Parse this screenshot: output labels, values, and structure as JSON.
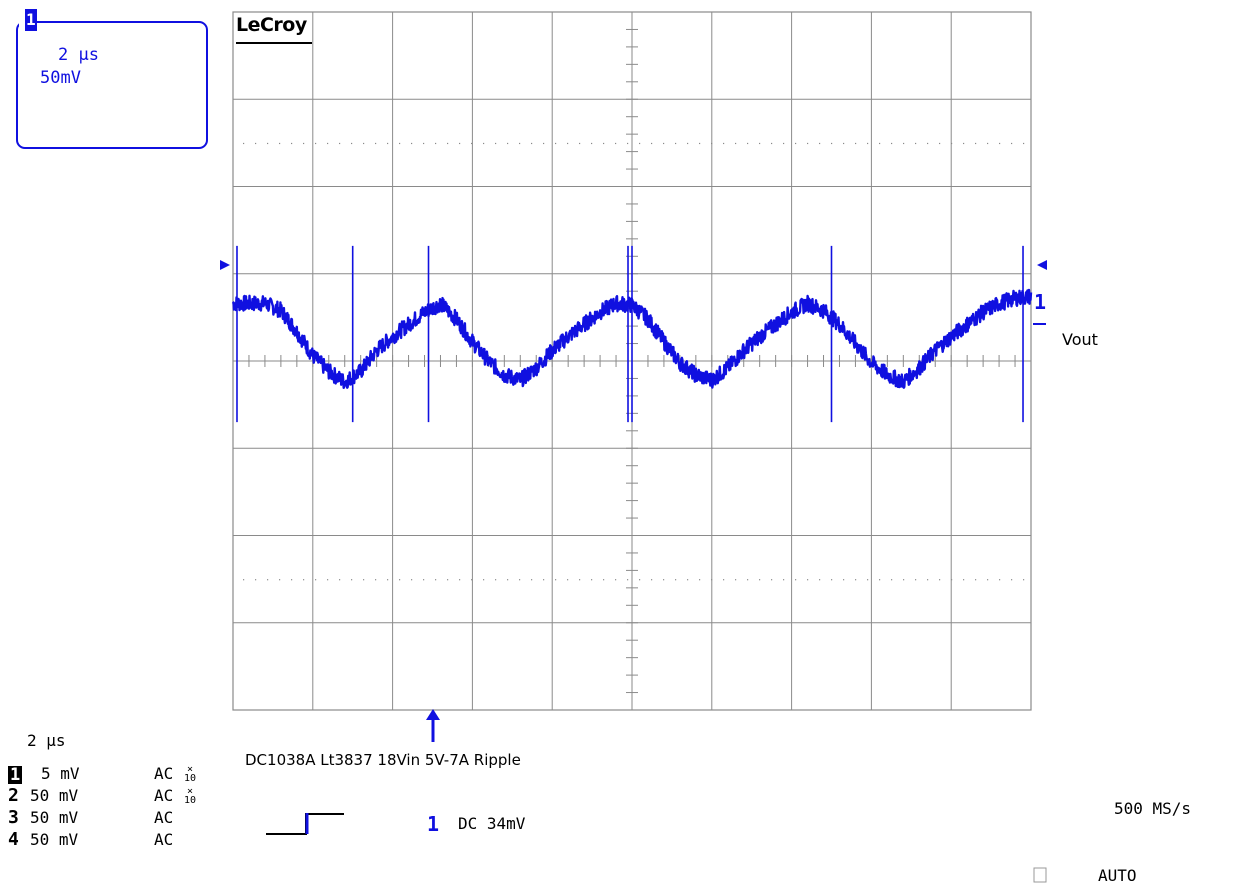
{
  "brand": "LeCroy",
  "zoom_box": {
    "channel": "1",
    "timebase": "2 μs",
    "volts": "50mV"
  },
  "trace": {
    "label_number": "1",
    "label": "Vout"
  },
  "caption": "DC1038A Lt3837 18Vin 5V-7A Ripple",
  "timebase": "2 μs",
  "channels": [
    {
      "num": "1",
      "volts": "5 mV",
      "coupling": "AC",
      "probe": "x10"
    },
    {
      "num": "2",
      "volts": "50 mV",
      "coupling": "AC",
      "probe": "x10"
    },
    {
      "num": "3",
      "volts": "50 mV",
      "coupling": "AC",
      "probe": ""
    },
    {
      "num": "4",
      "volts": "50 mV",
      "coupling": "AC",
      "probe": ""
    }
  ],
  "trigger": {
    "source": "1",
    "coupling_level": "DC  34mV",
    "mode": "AUTO"
  },
  "sample_rate": "500 MS/s",
  "colors": {
    "trace": "#1010e0",
    "grid": "#8a8a8a",
    "background": "#ffffff"
  },
  "chart_data": {
    "type": "line",
    "title": "DC1038A Lt3837 18Vin 5V-7A Ripple",
    "xlabel": "",
    "ylabel": "",
    "x_unit": "μs",
    "y_unit": "mV",
    "time_per_div_us": 2,
    "volts_per_div_mV": 5,
    "xlim": [
      0,
      20
    ],
    "ylim": [
      -20,
      20
    ],
    "grid": true,
    "series": [
      {
        "name": "Vout",
        "x": [
          0.0,
          0.4,
          0.8,
          1.2,
          1.6,
          2.0,
          2.4,
          2.8,
          3.2,
          3.6,
          4.0,
          4.4,
          4.8,
          5.2,
          5.6,
          6.0,
          6.4,
          6.8,
          7.2,
          7.6,
          8.0,
          8.4,
          8.8,
          9.2,
          9.6,
          10.0,
          10.4,
          10.8,
          11.2,
          11.6,
          12.0,
          12.4,
          12.8,
          13.2,
          13.6,
          14.0,
          14.4,
          14.8,
          15.2,
          15.6,
          16.0,
          16.4,
          16.8,
          17.2,
          17.6,
          18.0,
          18.4,
          18.8,
          19.2,
          19.6,
          20.0
        ],
        "values": [
          3.3,
          3.3,
          3.3,
          2.9,
          1.7,
          0.3,
          -0.6,
          -1.2,
          -0.6,
          0.6,
          1.4,
          2.1,
          2.8,
          3.3,
          2.4,
          1.1,
          0.0,
          -0.8,
          -1.1,
          -0.4,
          0.6,
          1.4,
          2.1,
          2.8,
          3.3,
          3.2,
          2.4,
          1.1,
          -0.1,
          -0.8,
          -1.1,
          -0.4,
          0.6,
          1.4,
          2.1,
          2.8,
          3.3,
          2.9,
          2.1,
          1.0,
          -0.1,
          -0.8,
          -1.2,
          -0.4,
          0.6,
          1.4,
          2.1,
          2.8,
          3.3,
          3.6,
          3.7
        ]
      }
    ],
    "spikes_us": [
      0.1,
      3.0,
      4.9,
      9.9,
      10.0,
      15.0,
      19.8
    ]
  }
}
